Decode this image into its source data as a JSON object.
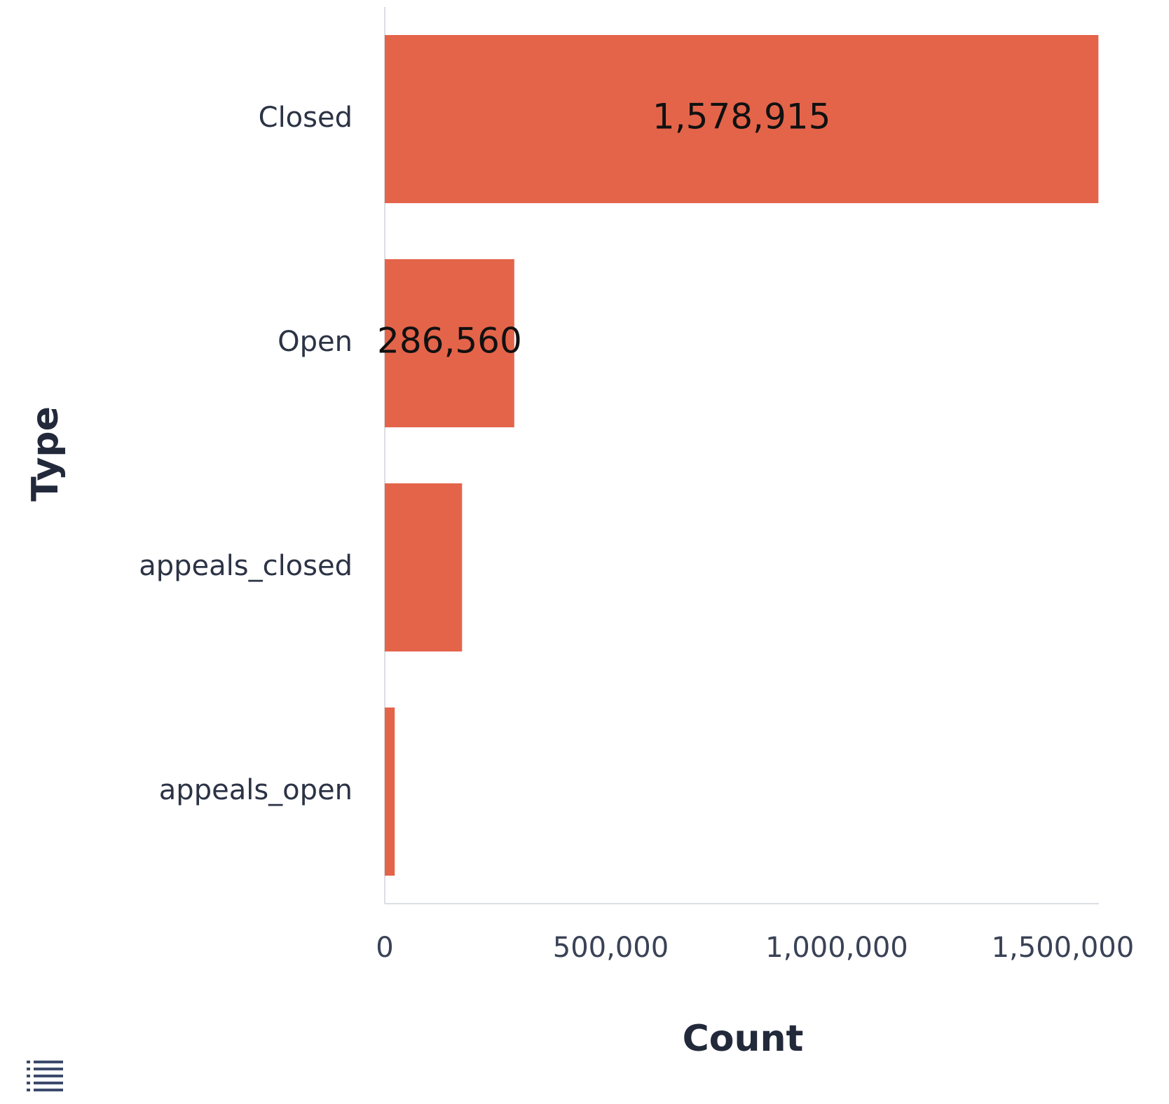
{
  "chart_data": {
    "type": "bar",
    "orientation": "horizontal",
    "categories": [
      "Closed",
      "Open",
      "appeals_closed",
      "appeals_open"
    ],
    "values": [
      1578915,
      286560,
      171000,
      22000
    ],
    "data_labels": [
      "1,578,915",
      "286,560",
      "",
      ""
    ],
    "xlabel": "Count",
    "ylabel": "Type",
    "xlim": [
      0,
      1580000
    ],
    "xticks": [
      0,
      500000,
      1000000,
      1500000
    ],
    "xtick_labels": [
      "0",
      "500,000",
      "1,000,000",
      "1,500,000"
    ],
    "bar_color": "#e4644a",
    "grid": false
  },
  "legend_toggle": {
    "icon": "list-icon"
  }
}
